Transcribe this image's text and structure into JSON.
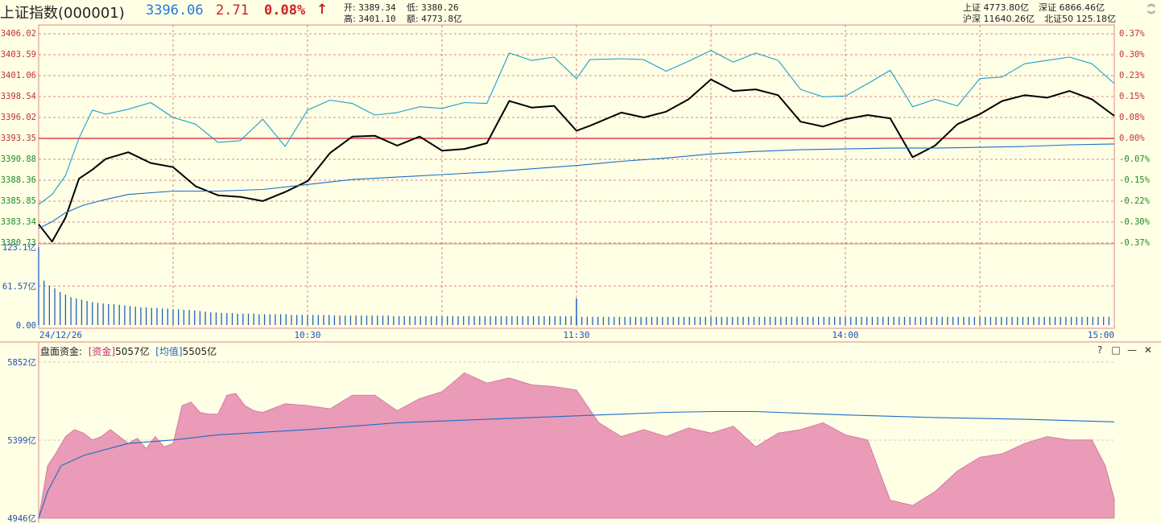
{
  "header": {
    "name": "上证指数",
    "code": "(000001)",
    "price": "3396.06",
    "change": "2.71",
    "change_pct": "0.08%",
    "arrow": "↑",
    "open_label": "开:",
    "open": "3389.34",
    "low_label": "低:",
    "low": "3380.26",
    "high_label": "高:",
    "high": "3401.10",
    "amount_label": "额:",
    "amount": "4773.8亿",
    "sh_label": "上证",
    "sh_value": "4773.80亿",
    "sz_label": "深证",
    "sz_value": "6866.46亿",
    "hs_label": "沪深",
    "hs_value": "11640.26亿",
    "bz_label": "北证50",
    "bz_value": "125.18亿"
  },
  "lower_panel": {
    "title": "盘面资金:",
    "fund_label": "[资金]",
    "fund_value": "5057亿",
    "avg_label": "[均值]",
    "avg_value": "5505亿"
  },
  "colors": {
    "background": "#ffffe6",
    "price_line": "#000000",
    "alt_line": "#1a9ecc",
    "avg_line": "#1a6dc8",
    "grid": "#cc6666",
    "baseline": "#e04040",
    "fund_fill": "#e99bb7",
    "volume": "#2060c0"
  },
  "chart_data": [
    {
      "type": "line",
      "title": "",
      "y_ticks": [
        "3406.02",
        "3403.59",
        "3401.06",
        "3398.54",
        "3396.02",
        "3393.35",
        "3390.88",
        "3388.36",
        "3385.85",
        "3383.34",
        "3380.73"
      ],
      "y_pct_ticks": [
        "0.37%",
        "0.30%",
        "0.23%",
        "0.15%",
        "0.08%",
        "0.00%",
        "-0.07%",
        "-0.15%",
        "-0.22%",
        "-0.30%",
        "-0.37%"
      ],
      "ylim": [
        3380.73,
        3406.02
      ],
      "prev_close": 3393.35,
      "x_ticks": [
        "24/12/26",
        "10:30",
        "11:30",
        "14:00",
        "15:00"
      ],
      "series": [
        {
          "role": "price",
          "x": [
            0,
            3,
            6,
            9,
            12,
            15,
            20,
            25,
            30,
            35,
            40,
            45,
            50,
            55,
            60,
            65,
            70,
            75,
            80,
            85,
            90,
            95,
            100,
            105,
            110,
            115,
            120,
            123,
            130,
            135,
            140,
            145,
            150,
            155,
            160,
            165,
            170,
            175,
            180,
            185,
            190,
            195,
            200,
            205,
            210,
            215,
            220,
            225,
            230,
            235,
            240
          ],
          "values": [
            3383.0,
            3380.9,
            3383.8,
            3388.5,
            3389.6,
            3390.9,
            3391.7,
            3390.4,
            3389.9,
            3387.6,
            3386.5,
            3386.3,
            3385.8,
            3386.9,
            3388.2,
            3391.6,
            3393.6,
            3393.7,
            3392.5,
            3393.6,
            3391.9,
            3392.1,
            3392.8,
            3397.9,
            3397.1,
            3397.3,
            3394.3,
            3394.9,
            3396.5,
            3395.9,
            3396.6,
            3398.1,
            3400.5,
            3399.1,
            3399.3,
            3398.6,
            3395.4,
            3394.8,
            3395.7,
            3396.2,
            3395.8,
            3391.1,
            3392.5,
            3395.1,
            3396.3,
            3397.9,
            3398.6,
            3398.3,
            3399.1,
            3398.1,
            3396.1
          ]
        },
        {
          "role": "alt",
          "x": [
            0,
            3,
            6,
            9,
            12,
            15,
            20,
            25,
            30,
            35,
            40,
            45,
            50,
            55,
            60,
            65,
            70,
            75,
            80,
            85,
            90,
            95,
            100,
            105,
            110,
            115,
            120,
            123,
            130,
            135,
            140,
            145,
            150,
            155,
            160,
            165,
            170,
            175,
            180,
            185,
            190,
            195,
            200,
            205,
            210,
            215,
            220,
            225,
            230,
            235,
            240
          ],
          "values": [
            3385.4,
            3386.6,
            3388.9,
            3393.4,
            3396.8,
            3396.3,
            3396.9,
            3397.7,
            3395.9,
            3395.1,
            3392.9,
            3393.1,
            3395.7,
            3392.4,
            3396.8,
            3398.0,
            3397.6,
            3396.2,
            3396.5,
            3397.2,
            3397.0,
            3397.7,
            3397.6,
            3403.7,
            3402.8,
            3403.2,
            3400.6,
            3402.9,
            3403.0,
            3402.9,
            3401.5,
            3402.7,
            3404.0,
            3402.6,
            3403.7,
            3402.8,
            3399.3,
            3398.4,
            3398.5,
            3400.0,
            3401.6,
            3397.2,
            3398.1,
            3397.3,
            3400.6,
            3400.8,
            3402.4,
            3402.8,
            3403.2,
            3402.4,
            3400.0
          ]
        },
        {
          "role": "average",
          "x": [
            0,
            3,
            6,
            10,
            15,
            20,
            30,
            40,
            50,
            60,
            70,
            80,
            90,
            100,
            110,
            120,
            130,
            140,
            150,
            160,
            170,
            180,
            190,
            200,
            210,
            220,
            230,
            240
          ],
          "values": [
            3382.5,
            3383.3,
            3384.4,
            3385.3,
            3386.0,
            3386.6,
            3387.0,
            3387.0,
            3387.2,
            3387.8,
            3388.4,
            3388.7,
            3389.0,
            3389.3,
            3389.7,
            3390.1,
            3390.6,
            3391.0,
            3391.5,
            3391.8,
            3392.0,
            3392.1,
            3392.2,
            3392.2,
            3392.3,
            3392.4,
            3392.6,
            3392.7
          ]
        }
      ]
    },
    {
      "type": "bar",
      "title": "",
      "y_ticks": [
        "123.1亿",
        "61.57亿",
        "0.00"
      ],
      "ylim": [
        0,
        123.1
      ],
      "x_step": 1.2,
      "values": [
        123.1,
        70,
        62,
        58,
        52,
        48,
        44,
        42,
        40,
        38,
        36,
        35,
        34,
        33,
        33,
        32,
        31,
        30,
        29,
        28,
        28,
        27,
        27,
        26,
        26,
        25,
        25,
        24,
        24,
        23,
        22,
        21,
        20,
        20,
        19,
        19,
        19,
        18,
        18,
        18,
        18,
        17,
        17,
        17,
        17,
        17,
        17,
        16,
        16,
        16,
        16,
        16,
        16,
        16,
        16,
        15,
        15,
        15,
        15,
        15,
        15,
        15,
        15,
        15,
        15,
        15,
        14,
        14,
        14,
        14,
        14,
        14,
        14,
        14,
        14,
        14,
        14,
        14,
        14,
        14,
        14,
        14,
        14,
        14,
        14,
        14,
        14,
        14,
        14,
        14,
        14,
        14,
        14,
        14,
        14,
        14,
        14,
        14,
        14,
        14,
        13,
        13,
        13,
        13,
        13,
        13,
        13,
        13,
        13,
        13,
        13,
        13,
        13,
        13,
        13,
        13,
        13,
        13,
        13,
        13,
        13,
        13,
        13,
        13,
        13,
        13,
        13,
        13,
        13,
        13,
        13,
        13,
        13,
        13,
        13,
        13,
        13,
        13,
        13,
        13,
        13,
        13,
        13,
        13,
        13,
        13,
        13,
        13,
        13,
        13,
        13,
        13,
        13,
        13,
        13,
        13,
        13,
        13,
        13,
        13,
        13,
        13,
        13,
        13,
        13,
        13,
        13,
        13,
        13,
        13,
        13,
        13,
        13,
        13,
        13,
        13,
        13,
        13,
        13,
        13,
        13,
        13,
        13,
        13,
        13,
        13,
        13,
        13,
        13,
        13,
        13,
        13,
        13,
        13,
        13,
        13,
        13,
        13,
        13,
        13
      ],
      "spike": {
        "x": 120,
        "value": 42
      }
    },
    {
      "type": "area",
      "title": "",
      "y_ticks": [
        "5852亿",
        "5399亿",
        "4946亿"
      ],
      "ylim": [
        4946,
        5852
      ],
      "series": [
        {
          "role": "fund",
          "x": [
            0,
            2,
            4,
            6,
            8,
            10,
            12,
            14,
            16,
            18,
            20,
            22,
            24,
            26,
            28,
            30,
            32,
            34,
            36,
            38,
            40,
            42,
            44,
            46,
            48,
            50,
            55,
            60,
            65,
            70,
            75,
            80,
            85,
            90,
            95,
            100,
            105,
            110,
            115,
            120,
            125,
            130,
            135,
            140,
            145,
            150,
            155,
            160,
            165,
            170,
            175,
            180,
            185,
            190,
            195,
            200,
            205,
            210,
            215,
            220,
            225,
            230,
            235,
            238,
            240
          ],
          "values": [
            4946,
            5250,
            5330,
            5420,
            5460,
            5440,
            5400,
            5420,
            5460,
            5420,
            5380,
            5410,
            5350,
            5420,
            5360,
            5380,
            5600,
            5620,
            5560,
            5550,
            5550,
            5660,
            5670,
            5600,
            5570,
            5560,
            5610,
            5600,
            5580,
            5660,
            5660,
            5570,
            5640,
            5680,
            5790,
            5730,
            5760,
            5720,
            5710,
            5690,
            5500,
            5420,
            5460,
            5420,
            5470,
            5440,
            5480,
            5360,
            5440,
            5460,
            5500,
            5430,
            5400,
            5050,
            5020,
            5100,
            5220,
            5300,
            5320,
            5380,
            5420,
            5400,
            5400,
            5250,
            5057
          ]
        },
        {
          "role": "average",
          "x": [
            0,
            2,
            5,
            10,
            20,
            30,
            40,
            60,
            80,
            100,
            120,
            140,
            150,
            160,
            180,
            200,
            220,
            240
          ],
          "values": [
            4946,
            5100,
            5250,
            5310,
            5380,
            5400,
            5430,
            5460,
            5500,
            5520,
            5540,
            5560,
            5565,
            5565,
            5545,
            5530,
            5520,
            5505
          ]
        }
      ]
    }
  ]
}
